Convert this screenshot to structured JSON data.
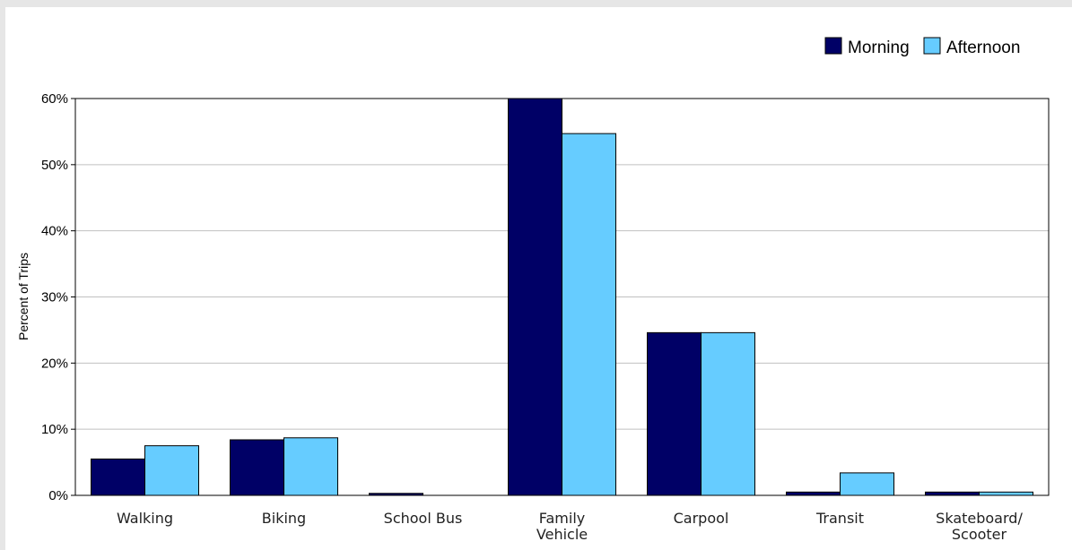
{
  "chart_data": {
    "type": "bar",
    "categories": [
      "Walking",
      "Biking",
      "School Bus",
      "Family Vehicle",
      "Carpool",
      "Transit",
      "Skateboard/ Scooter"
    ],
    "category_lines": [
      [
        "Walking"
      ],
      [
        "Biking"
      ],
      [
        "School Bus"
      ],
      [
        "Family",
        "Vehicle"
      ],
      [
        "Carpool"
      ],
      [
        "Transit"
      ],
      [
        "Skateboard/",
        "Scooter"
      ]
    ],
    "series": [
      {
        "name": "Morning",
        "color": "#000066",
        "values": [
          5.5,
          8.4,
          0.3,
          60.0,
          24.6,
          0.5,
          0.5
        ]
      },
      {
        "name": "Afternoon",
        "color": "#66ccff",
        "values": [
          7.5,
          8.7,
          0.0,
          54.7,
          24.6,
          3.4,
          0.5
        ]
      }
    ],
    "ylabel": "Percent of Trips",
    "yticks": [
      "0%",
      "10%",
      "20%",
      "30%",
      "40%",
      "50%",
      "60%"
    ],
    "ylim": [
      0,
      60
    ],
    "grid": true,
    "legend": "top-right"
  }
}
